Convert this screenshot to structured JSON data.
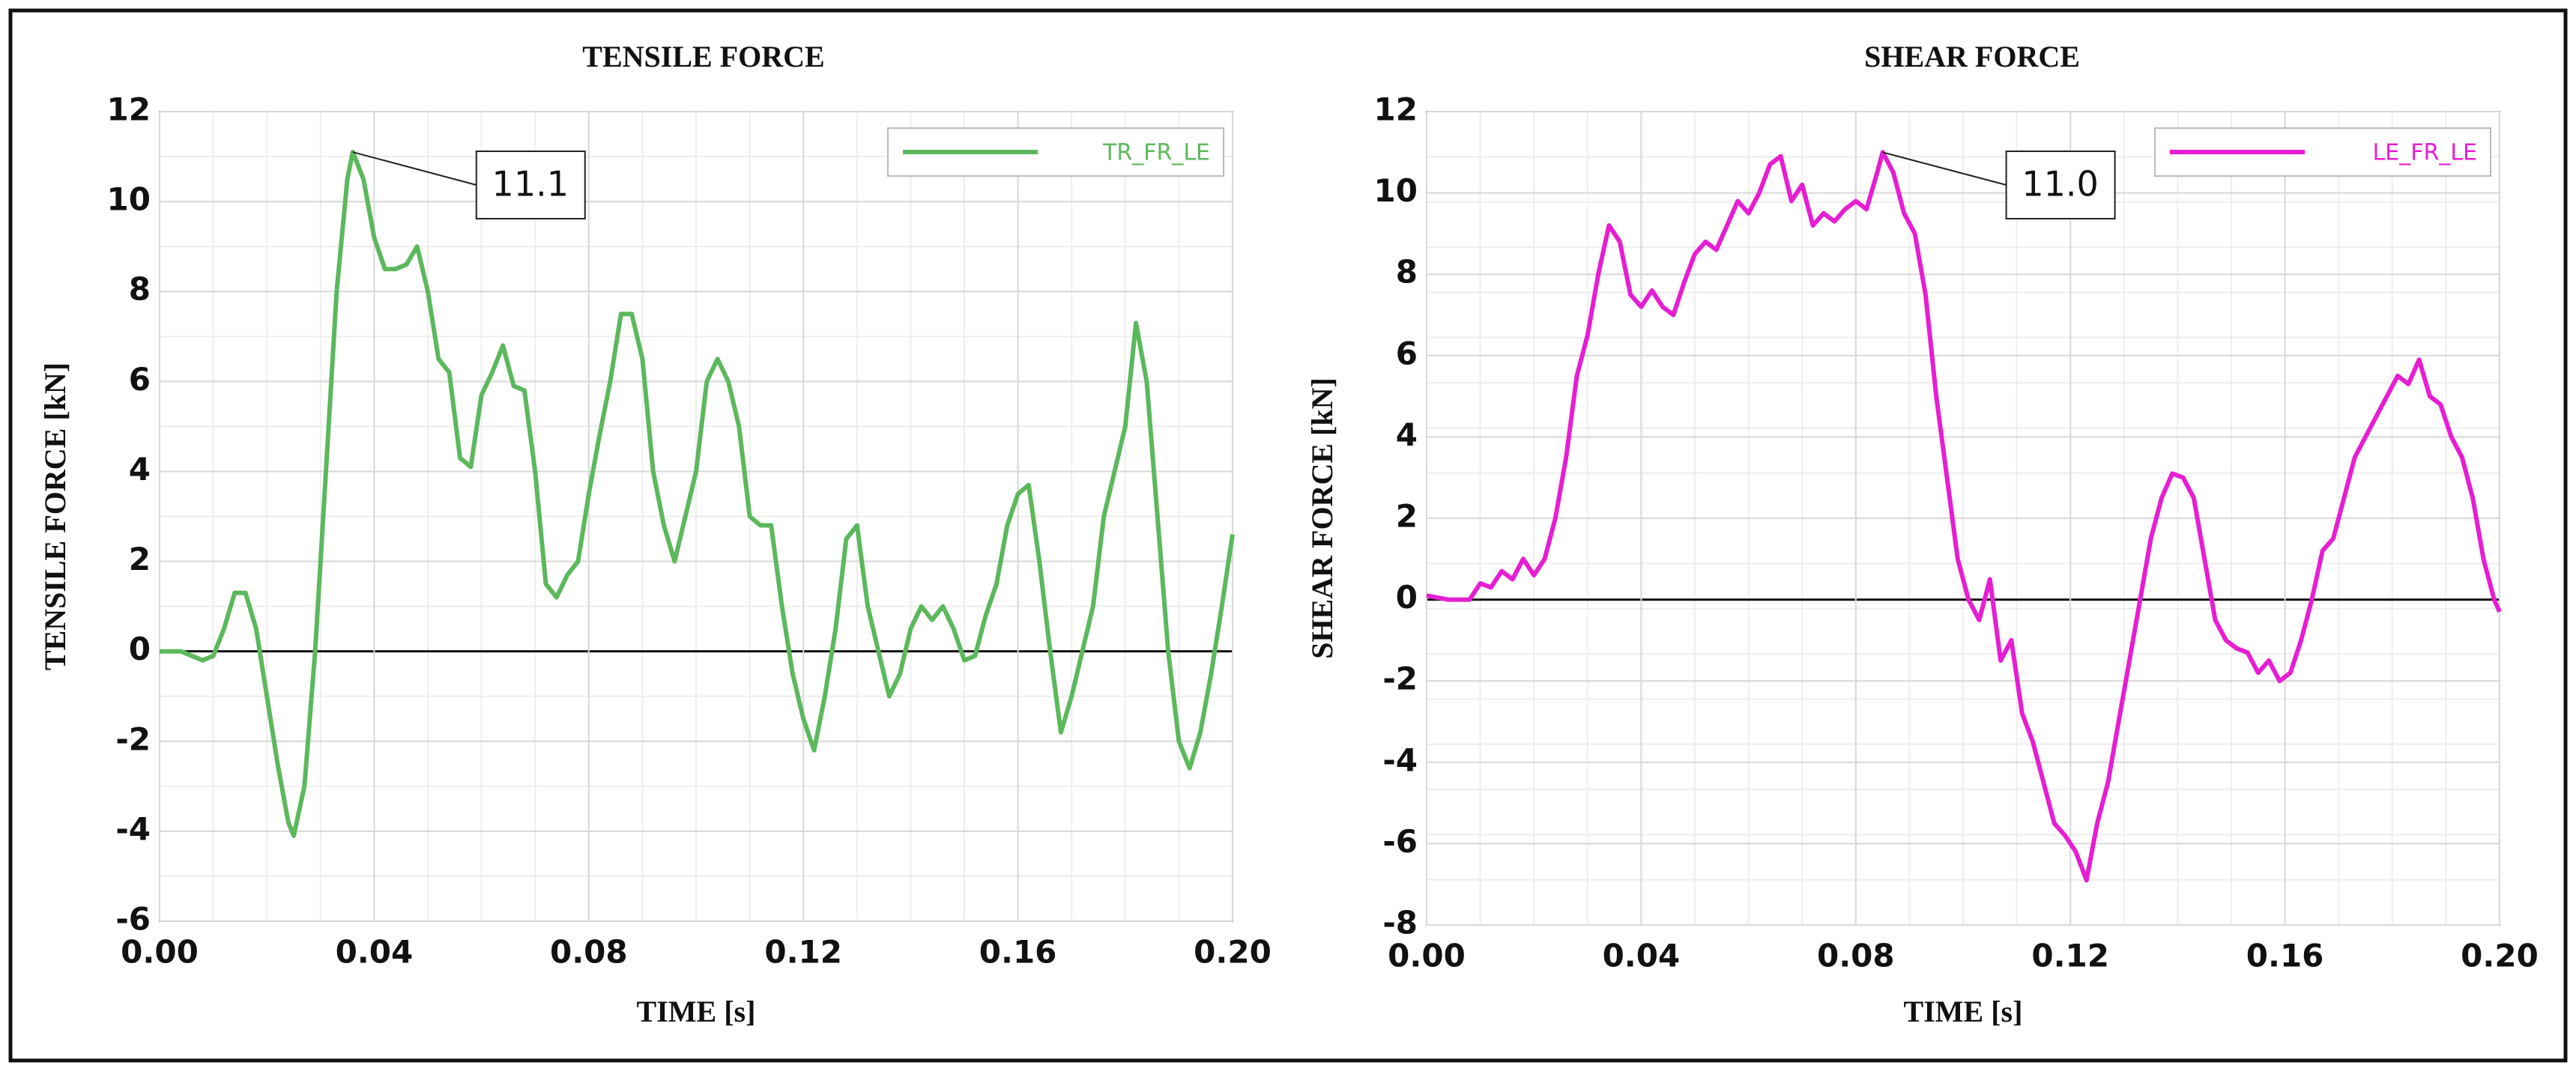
{
  "chart_data": [
    {
      "type": "line",
      "title": "TENSILE FORCE",
      "x_label": "TIME [s]",
      "y_label": "TENSILE FORCE [kN]",
      "xlim": [
        0,
        0.2
      ],
      "ylim": [
        -6,
        12
      ],
      "xticks": [
        {
          "value": 0,
          "label": "0.00"
        },
        0.04,
        0.08,
        0.12,
        0.16,
        {
          "value": 0.2,
          "label": "0.20"
        }
      ],
      "yticks": [
        -6,
        -4,
        -2,
        0,
        2,
        4,
        6,
        8,
        10,
        12
      ],
      "grid": true,
      "legend": "upper right",
      "x": [
        0,
        0.004,
        0.006,
        0.008,
        0.01,
        0.012,
        0.014,
        0.016,
        0.018,
        0.02,
        0.022,
        0.024,
        0.025,
        0.027,
        0.029,
        0.031,
        0.033,
        0.035,
        0.036,
        0.038,
        0.04,
        0.042,
        0.044,
        0.046,
        0.048,
        0.05,
        0.052,
        0.054,
        0.056,
        0.058,
        0.06,
        0.062,
        0.064,
        0.066,
        0.068,
        0.07,
        0.072,
        0.074,
        0.076,
        0.078,
        0.08,
        0.082,
        0.084,
        0.086,
        0.088,
        0.09,
        0.092,
        0.094,
        0.096,
        0.098,
        0.1,
        0.102,
        0.104,
        0.106,
        0.108,
        0.11,
        0.112,
        0.114,
        0.116,
        0.118,
        0.12,
        0.122,
        0.124,
        0.126,
        0.128,
        0.13,
        0.132,
        0.134,
        0.136,
        0.138,
        0.14,
        0.142,
        0.144,
        0.146,
        0.148,
        0.15,
        0.152,
        0.154,
        0.156,
        0.158,
        0.16,
        0.162,
        0.164,
        0.166,
        0.168,
        0.17,
        0.172,
        0.174,
        0.176,
        0.178,
        0.18,
        0.182,
        0.184,
        0.186,
        0.188,
        0.19,
        0.192,
        0.194,
        0.196,
        0.198,
        0.2
      ],
      "series": [
        {
          "name": "TR_FR_LE",
          "color": "#5cb85c",
          "values": [
            0,
            0,
            -0.1,
            -0.2,
            -0.1,
            0.5,
            1.3,
            1.3,
            0.5,
            -1.0,
            -2.5,
            -3.8,
            -4.1,
            -3.0,
            0,
            4,
            8,
            10.5,
            11.1,
            10.5,
            9.2,
            8.5,
            8.5,
            8.6,
            9.0,
            8.0,
            6.5,
            6.2,
            4.3,
            4.1,
            5.7,
            6.2,
            6.8,
            5.9,
            5.8,
            4.0,
            1.5,
            1.2,
            1.7,
            2.0,
            3.5,
            4.8,
            6.0,
            7.5,
            7.5,
            6.5,
            4.0,
            2.8,
            2.0,
            3.0,
            4.0,
            6.0,
            6.5,
            6.0,
            5.0,
            3.0,
            2.8,
            2.8,
            1.0,
            -0.5,
            -1.5,
            -2.2,
            -1.0,
            0.5,
            2.5,
            2.8,
            1.0,
            0,
            -1.0,
            -0.5,
            0.5,
            1.0,
            0.7,
            1.0,
            0.5,
            -0.2,
            -0.1,
            0.8,
            1.5,
            2.8,
            3.5,
            3.7,
            2.0,
            0,
            -1.8,
            -1.0,
            0,
            1.0,
            3.0,
            4.0,
            5.0,
            7.3,
            6.0,
            3.0,
            0,
            -2.0,
            -2.6,
            -1.8,
            -0.5,
            1.0,
            2.6
          ]
        }
      ],
      "annotations": [
        {
          "text": "11.1",
          "x": 0.036,
          "y": 11.1
        }
      ]
    },
    {
      "type": "line",
      "title": "SHEAR FORCE",
      "x_label": "TIME [s]",
      "y_label": "SHEAR FORCE [kN]",
      "xlim": [
        0,
        0.2
      ],
      "ylim": [
        -8,
        12
      ],
      "xticks": [
        {
          "value": 0,
          "label": "0.00"
        },
        0.04,
        0.08,
        0.12,
        0.16,
        {
          "value": 0.2,
          "label": "0.20"
        }
      ],
      "yticks": [
        -8,
        -6,
        -4,
        -2,
        0,
        2,
        4,
        6,
        8,
        10,
        12
      ],
      "grid": true,
      "legend": "upper right",
      "x": [
        0,
        0.004,
        0.008,
        0.01,
        0.012,
        0.014,
        0.016,
        0.018,
        0.02,
        0.022,
        0.024,
        0.026,
        0.028,
        0.03,
        0.032,
        0.034,
        0.036,
        0.038,
        0.04,
        0.042,
        0.044,
        0.046,
        0.048,
        0.05,
        0.052,
        0.054,
        0.056,
        0.058,
        0.06,
        0.062,
        0.064,
        0.066,
        0.068,
        0.07,
        0.072,
        0.074,
        0.076,
        0.078,
        0.08,
        0.082,
        0.084,
        0.085,
        0.087,
        0.089,
        0.091,
        0.093,
        0.095,
        0.097,
        0.099,
        0.101,
        0.103,
        0.105,
        0.107,
        0.109,
        0.111,
        0.113,
        0.115,
        0.117,
        0.119,
        0.121,
        0.123,
        0.125,
        0.127,
        0.129,
        0.131,
        0.133,
        0.135,
        0.137,
        0.139,
        0.141,
        0.143,
        0.145,
        0.147,
        0.149,
        0.151,
        0.153,
        0.155,
        0.157,
        0.159,
        0.161,
        0.163,
        0.165,
        0.167,
        0.169,
        0.171,
        0.173,
        0.175,
        0.177,
        0.179,
        0.181,
        0.183,
        0.185,
        0.187,
        0.189,
        0.191,
        0.193,
        0.195,
        0.197,
        0.199,
        0.2
      ],
      "series": [
        {
          "name": "LE_FR_LE",
          "color": "#e61ed2",
          "values": [
            0.1,
            0,
            0,
            0.4,
            0.3,
            0.7,
            0.5,
            1.0,
            0.6,
            1.0,
            2.0,
            3.5,
            5.5,
            6.5,
            8.0,
            9.2,
            8.8,
            7.5,
            7.2,
            7.6,
            7.2,
            7.0,
            7.8,
            8.5,
            8.8,
            8.6,
            9.2,
            9.8,
            9.5,
            10.0,
            10.7,
            10.9,
            9.8,
            10.2,
            9.2,
            9.5,
            9.3,
            9.6,
            9.8,
            9.6,
            10.5,
            11.0,
            10.5,
            9.5,
            9.0,
            7.5,
            5.0,
            3.0,
            1.0,
            0,
            -0.5,
            0.5,
            -1.5,
            -1.0,
            -2.8,
            -3.5,
            -4.5,
            -5.5,
            -5.8,
            -6.2,
            -6.9,
            -5.5,
            -4.5,
            -3.0,
            -1.5,
            0,
            1.5,
            2.5,
            3.1,
            3.0,
            2.5,
            1.0,
            -0.5,
            -1.0,
            -1.2,
            -1.3,
            -1.8,
            -1.5,
            -2.0,
            -1.8,
            -1.0,
            0,
            1.2,
            1.5,
            2.5,
            3.5,
            4.0,
            4.5,
            5.0,
            5.5,
            5.3,
            5.9,
            5.0,
            4.8,
            4.0,
            3.5,
            2.5,
            1.0,
            0,
            -0.3
          ]
        }
      ],
      "annotations": [
        {
          "text": "11.0",
          "x": 0.085,
          "y": 11.0
        }
      ]
    }
  ]
}
